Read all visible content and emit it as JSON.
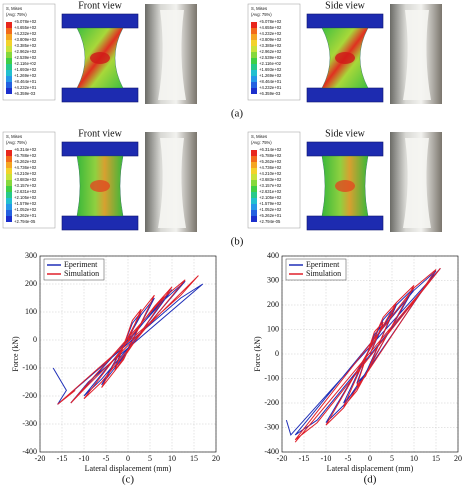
{
  "figure": {
    "panels": [
      {
        "label": "(a)",
        "views": [
          {
            "title": "Front view",
            "legend": {
              "title": "S, Mises",
              "subtitle": "(Avg: 75%)",
              "values": [
                "+5.078e+02",
                "+4.655e+02",
                "+4.232e+02",
                "+3.809e+02",
                "+3.385e+02",
                "+2.962e+02",
                "+2.539e+02",
                "+2.116e+02",
                "+1.693e+02",
                "+1.269e+02",
                "+8.464e+01",
                "+4.232e+01",
                "+6.359e-03"
              ]
            }
          },
          {
            "title": "Side view",
            "legend": {
              "title": "S, Mises",
              "subtitle": "(Avg: 75%)",
              "values": [
                "+5.078e+02",
                "+4.655e+02",
                "+4.232e+02",
                "+3.809e+02",
                "+3.385e+02",
                "+2.962e+02",
                "+2.539e+02",
                "+2.116e+02",
                "+1.693e+02",
                "+1.269e+02",
                "+8.464e+01",
                "+4.232e+01",
                "+6.359e-03"
              ]
            }
          }
        ]
      },
      {
        "label": "(b)",
        "views": [
          {
            "title": "Front view",
            "legend": {
              "title": "S, Mises",
              "subtitle": "(Avg: 75%)",
              "values": [
                "+6.314e+02",
                "+5.788e+02",
                "+5.262e+02",
                "+4.736e+02",
                "+4.210e+02",
                "+3.683e+02",
                "+3.157e+02",
                "+2.631e+02",
                "+2.105e+02",
                "+1.579e+02",
                "+1.052e+02",
                "+5.262e+01",
                "+2.794e-05"
              ]
            }
          },
          {
            "title": "Side view",
            "legend": {
              "title": "S, Mises",
              "subtitle": "(Avg: 75%)",
              "values": [
                "+6.314e+02",
                "+5.788e+02",
                "+5.262e+02",
                "+4.736e+02",
                "+4.210e+02",
                "+3.683e+02",
                "+3.157e+02",
                "+2.631e+02",
                "+2.105e+02",
                "+1.579e+02",
                "+1.052e+02",
                "+5.262e+01",
                "+2.794e-05"
              ]
            }
          }
        ]
      }
    ],
    "chart_captions": [
      "(c)",
      "(d)"
    ]
  },
  "chart_data": [
    {
      "type": "line",
      "x_label": "Lateral displacement (mm)",
      "y_label": "Force (kN)",
      "xlim": [
        -20,
        20
      ],
      "xticks": [
        -20,
        -15,
        -10,
        -5,
        0,
        5,
        10,
        15,
        20
      ],
      "ylim": [
        -400,
        300
      ],
      "yticks": [
        -400,
        -300,
        -200,
        -100,
        0,
        100,
        200,
        300
      ],
      "legend": "upper left",
      "series": [
        {
          "name": "Eperiment",
          "color": "#1f2fb8",
          "x": [
            0,
            3,
            1,
            -3,
            -1,
            6,
            3,
            -6,
            -3,
            10,
            6,
            -10,
            -6,
            13,
            8,
            -13,
            -9,
            17,
            12,
            -16,
            -14,
            -17
          ],
          "values": [
            0,
            100,
            60,
            -100,
            -60,
            150,
            90,
            -160,
            -100,
            180,
            110,
            -200,
            -140,
            210,
            140,
            -225,
            -150,
            200,
            150,
            -230,
            -180,
            -100
          ]
        },
        {
          "name": "Simulation",
          "color": "#e0202a",
          "x": [
            0,
            3,
            1,
            -3,
            -1,
            6,
            3,
            -6,
            -3,
            10,
            6,
            -10,
            -6,
            13,
            8,
            -13,
            -9,
            16,
            12,
            -16,
            -12
          ],
          "values": [
            0,
            110,
            70,
            -110,
            -70,
            160,
            100,
            -170,
            -110,
            190,
            120,
            -210,
            -150,
            215,
            150,
            -225,
            -160,
            230,
            160,
            -230,
            -180
          ]
        }
      ]
    },
    {
      "type": "line",
      "x_label": "Lateral displacement (mm)",
      "y_label": "Force (kN)",
      "xlim": [
        -20,
        20
      ],
      "xticks": [
        -20,
        -15,
        -10,
        -5,
        0,
        5,
        10,
        15,
        20
      ],
      "ylim": [
        -400,
        400
      ],
      "yticks": [
        -400,
        -300,
        -200,
        -100,
        0,
        100,
        200,
        300,
        400
      ],
      "legend": "upper left",
      "series": [
        {
          "name": "Eperiment",
          "color": "#1f2fb8",
          "x": [
            0,
            3,
            1,
            -3,
            -1,
            6,
            3,
            -6,
            -3,
            10,
            6,
            -10,
            -6,
            15,
            10,
            -17,
            -12,
            16,
            -18,
            -19
          ],
          "values": [
            0,
            120,
            80,
            -120,
            -80,
            200,
            140,
            -200,
            -140,
            270,
            200,
            -280,
            -210,
            340,
            260,
            -330,
            -270,
            350,
            -330,
            -270
          ]
        },
        {
          "name": "Simulation",
          "color": "#e0202a",
          "x": [
            0,
            3,
            1,
            -3,
            -1,
            6,
            3,
            -6,
            -3,
            10,
            6,
            -10,
            -6,
            15,
            10,
            -17,
            -12,
            16,
            -17
          ],
          "values": [
            0,
            130,
            90,
            -130,
            -90,
            210,
            150,
            -215,
            -150,
            280,
            210,
            -290,
            -220,
            345,
            270,
            -350,
            -280,
            350,
            -360
          ]
        }
      ]
    }
  ]
}
